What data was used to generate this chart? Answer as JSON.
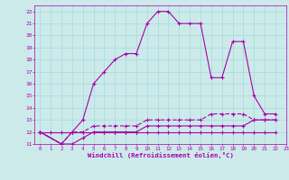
{
  "xlabel": "Windchill (Refroidissement éolien,°C)",
  "xlim": [
    -0.5,
    23
  ],
  "ylim": [
    11,
    22.5
  ],
  "xticks": [
    0,
    1,
    2,
    3,
    4,
    5,
    6,
    7,
    8,
    9,
    10,
    11,
    12,
    13,
    14,
    15,
    16,
    17,
    18,
    19,
    20,
    21,
    22,
    23
  ],
  "yticks": [
    11,
    12,
    13,
    14,
    15,
    16,
    17,
    18,
    19,
    20,
    21,
    22
  ],
  "background_color": "#cceaea",
  "grid_color": "#aadddd",
  "line_color": "#aa00aa",
  "line1_x": [
    0,
    1,
    2,
    3,
    4,
    5,
    6,
    7,
    8,
    9,
    10,
    11,
    12,
    13,
    14,
    15,
    16,
    17,
    18,
    19,
    20,
    21,
    22
  ],
  "line1_y": [
    12,
    12,
    12,
    12,
    12,
    12,
    12,
    12,
    12,
    12,
    12,
    12,
    12,
    12,
    12,
    12,
    12,
    12,
    12,
    12,
    12,
    12,
    12
  ],
  "line2_x": [
    0,
    2,
    3,
    4,
    5,
    6,
    7,
    8,
    9,
    10,
    11,
    12,
    13,
    14,
    15,
    16,
    17,
    18,
    19,
    20,
    21,
    22
  ],
  "line2_y": [
    12,
    11,
    11,
    11.5,
    12,
    12,
    12,
    12,
    12,
    12.5,
    12.5,
    12.5,
    12.5,
    12.5,
    12.5,
    12.5,
    12.5,
    12.5,
    12.5,
    13,
    13,
    13
  ],
  "line3_x": [
    0,
    2,
    3,
    4,
    5,
    6,
    7,
    8,
    9,
    10,
    11,
    12,
    13,
    14,
    15,
    16,
    17,
    18,
    19,
    20,
    21,
    22
  ],
  "line3_y": [
    12,
    11,
    12,
    12,
    12.5,
    12.5,
    12.5,
    12.5,
    12.5,
    13,
    13,
    13,
    13,
    13,
    13,
    13.5,
    13.5,
    13.5,
    13.5,
    13,
    13,
    13
  ],
  "line4_x": [
    0,
    2,
    3,
    4,
    5,
    6,
    7,
    8,
    9,
    10,
    11,
    12,
    13,
    14,
    15,
    16,
    17,
    18,
    19,
    20,
    21,
    22
  ],
  "line4_y": [
    12,
    11,
    12,
    13,
    16,
    17,
    18,
    18.5,
    18.5,
    21,
    22,
    22,
    21,
    21,
    21,
    16.5,
    16.5,
    19.5,
    19.5,
    15,
    13.5,
    13.5
  ]
}
